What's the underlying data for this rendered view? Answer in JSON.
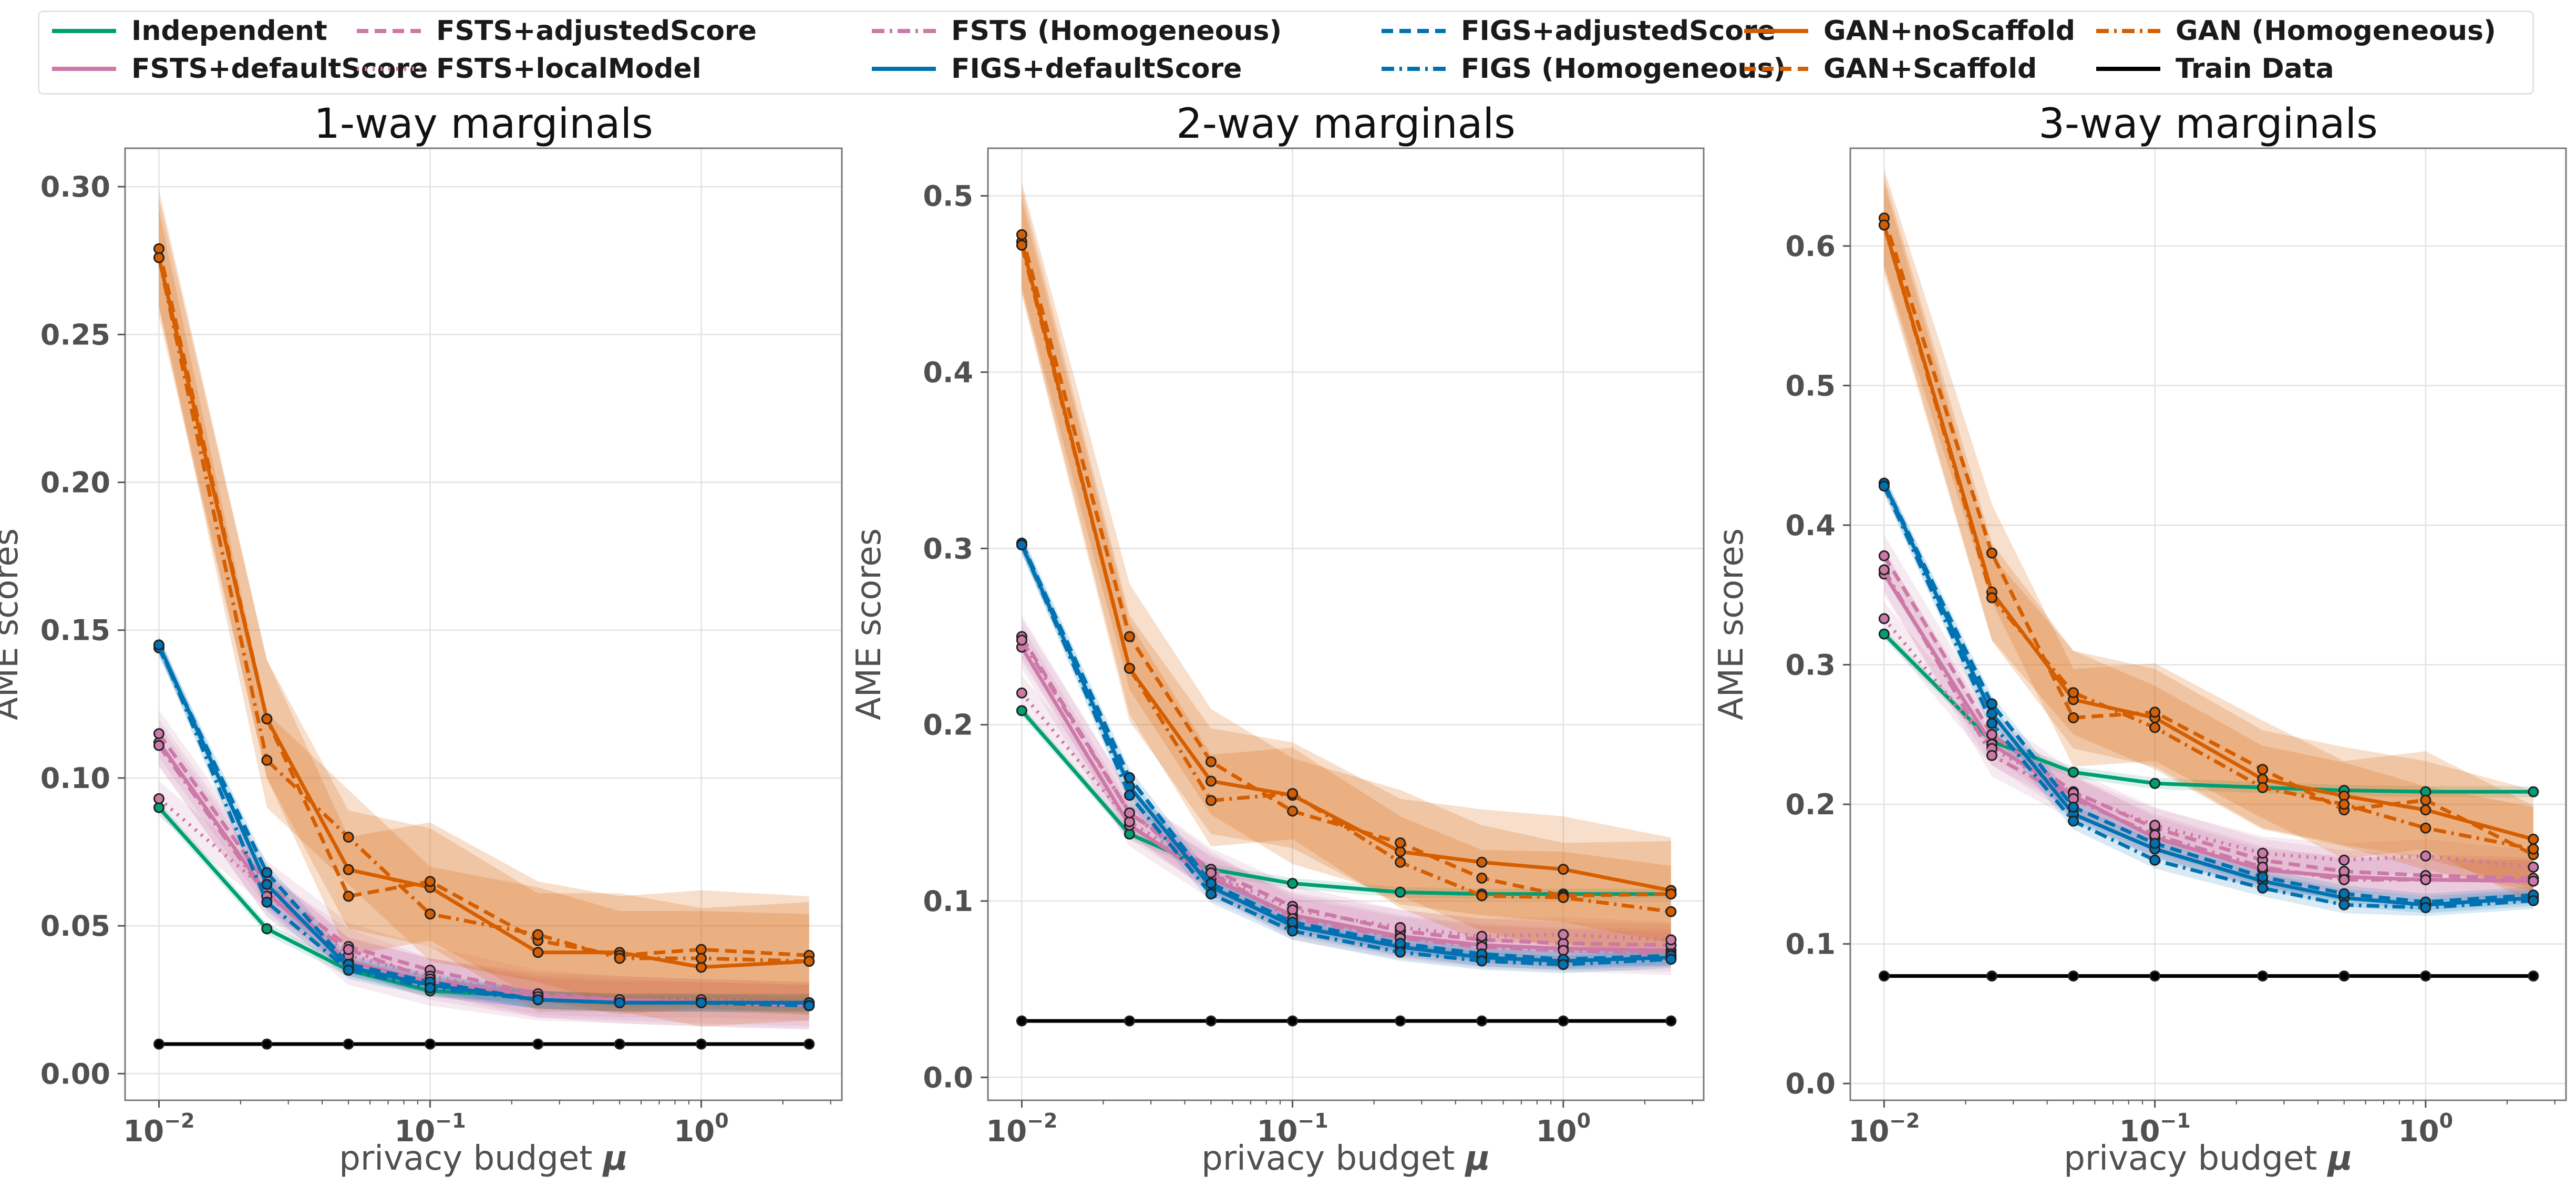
{
  "legend": [
    {
      "name": "Independent",
      "color": "#009E73",
      "dash": "solid"
    },
    {
      "name": "FSTS+defaultScore",
      "color": "#CC79A7",
      "dash": "solid"
    },
    {
      "name": "FSTS+adjustedScore",
      "color": "#CC79A7",
      "dash": "dashed"
    },
    {
      "name": "FSTS+localModel",
      "color": "#CC79A7",
      "dash": "dotted"
    },
    {
      "name": "FSTS (Homogeneous)",
      "color": "#CC79A7",
      "dash": "dashdot"
    },
    {
      "name": "FIGS+defaultScore",
      "color": "#0072B2",
      "dash": "solid"
    },
    {
      "name": "FIGS+adjustedScore",
      "color": "#0072B2",
      "dash": "dashed"
    },
    {
      "name": "FIGS (Homogeneous)",
      "color": "#0072B2",
      "dash": "dashdot"
    },
    {
      "name": "GAN+noScaffold",
      "color": "#D55E00",
      "dash": "solid"
    },
    {
      "name": "GAN+Scaffold",
      "color": "#D55E00",
      "dash": "dashed"
    },
    {
      "name": "GAN (Homogeneous)",
      "color": "#D55E00",
      "dash": "dashdot"
    },
    {
      "name": "Train Data",
      "color": "#000000",
      "dash": "solid"
    }
  ],
  "chart_data": [
    {
      "type": "line",
      "title": "1-way marginals",
      "xlabel": "privacy budget μ",
      "ylabel": "AME scores",
      "xscale": "log",
      "x": [
        0.01,
        0.025,
        0.05,
        0.1,
        0.25,
        0.5,
        1.0,
        2.5
      ],
      "xticks": [
        {
          "value": 0.01,
          "base": "10",
          "exp": "−2"
        },
        {
          "value": 0.1,
          "base": "10",
          "exp": "−1"
        },
        {
          "value": 1,
          "base": "10",
          "exp": "0"
        }
      ],
      "ylim": [
        -0.009,
        0.313
      ],
      "yticks": [
        "0.00",
        "0.05",
        "0.10",
        "0.15",
        "0.20",
        "0.25",
        "0.30"
      ],
      "grid": true,
      "series": [
        {
          "name": "Independent",
          "values": [
            0.09,
            0.049,
            0.035,
            0.028,
            0.026,
            0.024,
            0.024,
            0.023
          ],
          "band": 0.002
        },
        {
          "name": "FSTS+defaultScore",
          "values": [
            0.112,
            0.061,
            0.038,
            0.031,
            0.026,
            0.025,
            0.024,
            0.023
          ],
          "band": 0.008
        },
        {
          "name": "FSTS+adjustedScore",
          "values": [
            0.115,
            0.064,
            0.043,
            0.035,
            0.027,
            0.025,
            0.024,
            0.023
          ],
          "band": 0.008
        },
        {
          "name": "FSTS+localModel",
          "values": [
            0.093,
            0.062,
            0.04,
            0.033,
            0.026,
            0.025,
            0.025,
            0.024
          ],
          "band": 0.006
        },
        {
          "name": "FSTS (Homogeneous)",
          "values": [
            0.111,
            0.06,
            0.042,
            0.032,
            0.026,
            0.025,
            0.024,
            0.023
          ],
          "band": 0.007
        },
        {
          "name": "FIGS+defaultScore",
          "values": [
            0.145,
            0.064,
            0.036,
            0.03,
            0.025,
            0.024,
            0.024,
            0.024
          ],
          "band": 0.003
        },
        {
          "name": "FIGS+adjustedScore",
          "values": [
            0.144,
            0.068,
            0.037,
            0.031,
            0.025,
            0.024,
            0.024,
            0.024
          ],
          "band": 0.003
        },
        {
          "name": "FIGS (Homogeneous)",
          "values": [
            0.145,
            0.058,
            0.035,
            0.029,
            0.025,
            0.024,
            0.024,
            0.023
          ],
          "band": 0.003
        },
        {
          "name": "GAN+noScaffold",
          "values": [
            0.276,
            0.12,
            0.069,
            0.063,
            0.041,
            0.041,
            0.036,
            0.038
          ],
          "band": 0.02
        },
        {
          "name": "GAN+Scaffold",
          "values": [
            0.279,
            0.12,
            0.06,
            0.065,
            0.045,
            0.04,
            0.042,
            0.04
          ],
          "band": 0.02
        },
        {
          "name": "GAN (Homogeneous)",
          "values": [
            0.276,
            0.106,
            0.08,
            0.054,
            0.047,
            0.039,
            0.039,
            0.038
          ],
          "band": 0.016
        },
        {
          "name": "Train Data",
          "values": [
            0.01,
            0.01,
            0.01,
            0.01,
            0.01,
            0.01,
            0.01,
            0.01
          ],
          "band": 0
        }
      ]
    },
    {
      "type": "line",
      "title": "2-way marginals",
      "xlabel": "privacy budget μ",
      "ylabel": "AME scores",
      "xscale": "log",
      "x": [
        0.01,
        0.025,
        0.05,
        0.1,
        0.25,
        0.5,
        1.0,
        2.5
      ],
      "xticks": [
        {
          "value": 0.01,
          "base": "10",
          "exp": "−2"
        },
        {
          "value": 0.1,
          "base": "10",
          "exp": "−1"
        },
        {
          "value": 1,
          "base": "10",
          "exp": "0"
        }
      ],
      "ylim": [
        -0.013,
        0.527
      ],
      "yticks": [
        "0.0",
        "0.1",
        "0.2",
        "0.3",
        "0.4",
        "0.5"
      ],
      "grid": true,
      "series": [
        {
          "name": "Independent",
          "values": [
            0.208,
            0.138,
            0.118,
            0.11,
            0.105,
            0.104,
            0.104,
            0.104
          ],
          "band": 0.003
        },
        {
          "name": "FSTS+defaultScore",
          "values": [
            0.244,
            0.143,
            0.113,
            0.092,
            0.08,
            0.075,
            0.073,
            0.072
          ],
          "band": 0.012
        },
        {
          "name": "FSTS+adjustedScore",
          "values": [
            0.25,
            0.15,
            0.118,
            0.097,
            0.083,
            0.078,
            0.076,
            0.075
          ],
          "band": 0.012
        },
        {
          "name": "FSTS+localModel",
          "values": [
            0.218,
            0.145,
            0.116,
            0.095,
            0.085,
            0.08,
            0.081,
            0.078
          ],
          "band": 0.01
        },
        {
          "name": "FSTS (Homogeneous)",
          "values": [
            0.248,
            0.15,
            0.116,
            0.09,
            0.079,
            0.074,
            0.072,
            0.07
          ],
          "band": 0.012
        },
        {
          "name": "FIGS+defaultScore",
          "values": [
            0.302,
            0.165,
            0.108,
            0.086,
            0.074,
            0.068,
            0.066,
            0.068
          ],
          "band": 0.005
        },
        {
          "name": "FIGS+adjustedScore",
          "values": [
            0.303,
            0.17,
            0.11,
            0.088,
            0.076,
            0.07,
            0.067,
            0.069
          ],
          "band": 0.005
        },
        {
          "name": "FIGS (Homogeneous)",
          "values": [
            0.302,
            0.16,
            0.104,
            0.083,
            0.071,
            0.066,
            0.064,
            0.067
          ],
          "band": 0.005
        },
        {
          "name": "GAN+noScaffold",
          "values": [
            0.474,
            0.232,
            0.168,
            0.16,
            0.128,
            0.122,
            0.118,
            0.106
          ],
          "band": 0.03
        },
        {
          "name": "GAN+Scaffold",
          "values": [
            0.478,
            0.25,
            0.179,
            0.151,
            0.133,
            0.113,
            0.103,
            0.104
          ],
          "band": 0.03
        },
        {
          "name": "GAN (Homogeneous)",
          "values": [
            0.472,
            0.232,
            0.157,
            0.161,
            0.122,
            0.103,
            0.102,
            0.094
          ],
          "band": 0.026
        },
        {
          "name": "Train Data",
          "values": [
            0.032,
            0.032,
            0.032,
            0.032,
            0.032,
            0.032,
            0.032,
            0.032
          ],
          "band": 0
        }
      ]
    },
    {
      "type": "line",
      "title": "3-way marginals",
      "xlabel": "privacy budget μ",
      "ylabel": "AME scores",
      "xscale": "log",
      "x": [
        0.01,
        0.025,
        0.05,
        0.1,
        0.25,
        0.5,
        1.0,
        2.5
      ],
      "xticks": [
        {
          "value": 0.01,
          "base": "10",
          "exp": "−2"
        },
        {
          "value": 0.1,
          "base": "10",
          "exp": "−1"
        },
        {
          "value": 1,
          "base": "10",
          "exp": "0"
        }
      ],
      "ylim": [
        -0.012,
        0.67
      ],
      "yticks": [
        "0.0",
        "0.1",
        "0.2",
        "0.3",
        "0.4",
        "0.5",
        "0.6"
      ],
      "grid": true,
      "series": [
        {
          "name": "Independent",
          "values": [
            0.322,
            0.245,
            0.223,
            0.215,
            0.212,
            0.21,
            0.209,
            0.209
          ],
          "band": 0.004
        },
        {
          "name": "FSTS+defaultScore",
          "values": [
            0.365,
            0.243,
            0.206,
            0.176,
            0.153,
            0.148,
            0.146,
            0.145
          ],
          "band": 0.015
        },
        {
          "name": "FSTS+adjustedScore",
          "values": [
            0.378,
            0.25,
            0.209,
            0.183,
            0.16,
            0.152,
            0.149,
            0.147
          ],
          "band": 0.015
        },
        {
          "name": "FSTS+localModel",
          "values": [
            0.333,
            0.24,
            0.208,
            0.185,
            0.165,
            0.16,
            0.163,
            0.155
          ],
          "band": 0.012
        },
        {
          "name": "FSTS (Homogeneous)",
          "values": [
            0.368,
            0.235,
            0.204,
            0.178,
            0.155,
            0.146,
            0.146,
            0.145
          ],
          "band": 0.015
        },
        {
          "name": "FIGS+defaultScore",
          "values": [
            0.43,
            0.265,
            0.193,
            0.168,
            0.145,
            0.133,
            0.128,
            0.133
          ],
          "band": 0.006
        },
        {
          "name": "FIGS+adjustedScore",
          "values": [
            0.43,
            0.272,
            0.198,
            0.172,
            0.148,
            0.136,
            0.13,
            0.135
          ],
          "band": 0.006
        },
        {
          "name": "FIGS (Homogeneous)",
          "values": [
            0.428,
            0.258,
            0.188,
            0.16,
            0.14,
            0.128,
            0.126,
            0.131
          ],
          "band": 0.006
        },
        {
          "name": "GAN+noScaffold",
          "values": [
            0.615,
            0.352,
            0.275,
            0.262,
            0.218,
            0.206,
            0.196,
            0.175
          ],
          "band": 0.035
        },
        {
          "name": "GAN+Scaffold",
          "values": [
            0.62,
            0.38,
            0.262,
            0.266,
            0.225,
            0.196,
            0.203,
            0.164
          ],
          "band": 0.035
        },
        {
          "name": "GAN (Homogeneous)",
          "values": [
            0.615,
            0.348,
            0.28,
            0.255,
            0.212,
            0.2,
            0.183,
            0.168
          ],
          "band": 0.03
        },
        {
          "name": "Train Data",
          "values": [
            0.077,
            0.077,
            0.077,
            0.077,
            0.077,
            0.077,
            0.077,
            0.077
          ],
          "band": 0
        }
      ]
    }
  ]
}
